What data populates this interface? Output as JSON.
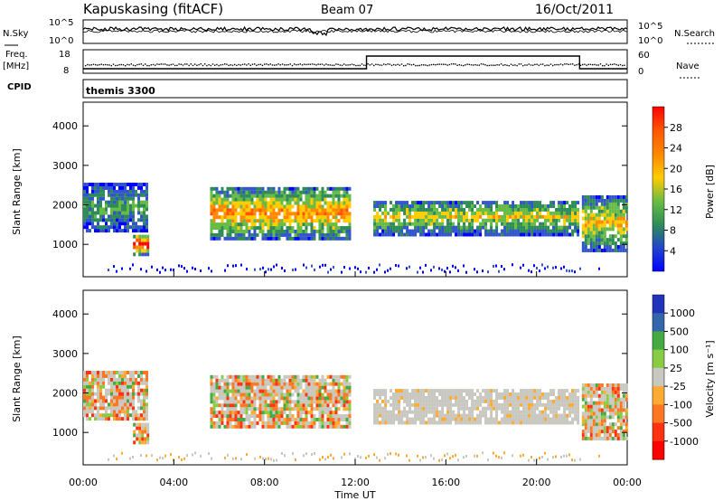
{
  "header": {
    "station": "Kapuskasing (fitACF)",
    "beam": "Beam 07",
    "date": "16/Oct/2011"
  },
  "strip_labels": {
    "nsky": "N.Sky",
    "nsearch": "N.Search",
    "freq": "Freq.",
    "freq_unit": "[MHz]",
    "cpid": "CPID",
    "nave": "Nave",
    "cpid_value": "themis 3300",
    "noise_ticks": [
      "10^5",
      "10^0"
    ],
    "freq_ticks": [
      "18",
      "8"
    ],
    "nave_ticks": [
      "60",
      "0"
    ]
  },
  "colors": {
    "power_scale": [
      "#0000ff",
      "#3355cc",
      "#2e8b57",
      "#66bb44",
      "#ffcc00",
      "#ff8800",
      "#ff5500",
      "#ff0000"
    ],
    "velocity_scale": [
      "#2233bb",
      "#3366aa",
      "#44aa44",
      "#88cc44",
      "#c8c8c0",
      "#ffaa33",
      "#ff7722",
      "#ff3311",
      "#ff0000"
    ],
    "ground_scatter": "#c8c8c0"
  },
  "chart_data": [
    {
      "type": "heatmap",
      "title": "Power",
      "ylabel": "Slant Range [km]",
      "xlabel": "",
      "ylim": [
        180,
        4600
      ],
      "yticks": [
        1000,
        2000,
        3000,
        4000
      ],
      "colorbar": {
        "label": "Power [dB]",
        "ticks": [
          "4",
          "8",
          "12",
          "16",
          "20",
          "24",
          "28"
        ],
        "range": [
          0,
          32
        ]
      }
    },
    {
      "type": "heatmap",
      "title": "Velocity",
      "ylabel": "Slant Range [km]",
      "xlabel": "Time UT",
      "ylim": [
        180,
        4600
      ],
      "yticks": [
        1000,
        2000,
        3000,
        4000
      ],
      "xlim": [
        "00:00",
        "24:00"
      ],
      "xticks": [
        "00:00",
        "04:00",
        "08:00",
        "12:00",
        "16:00",
        "20:00",
        "00:00"
      ],
      "colorbar": {
        "label": "Velocity [m s⁻¹]",
        "ticks": [
          "1000",
          "500",
          "100",
          "25",
          "-25",
          "-100",
          "-500",
          "-1000"
        ]
      }
    }
  ],
  "echo_regions_hours": [
    {
      "start": 0.0,
      "end": 2.8,
      "range": [
        1300,
        2500
      ],
      "power_db": 10
    },
    {
      "start": 2.2,
      "end": 2.8,
      "range": [
        700,
        1200
      ],
      "power_db": 26
    },
    {
      "start": 5.6,
      "end": 11.8,
      "range": [
        1100,
        2400
      ],
      "power_db": 18
    },
    {
      "start": 12.8,
      "end": 21.8,
      "range": [
        1200,
        2100
      ],
      "power_db": 14
    },
    {
      "start": 22.0,
      "end": 24.0,
      "range": [
        800,
        2200
      ],
      "power_db": 16
    }
  ]
}
